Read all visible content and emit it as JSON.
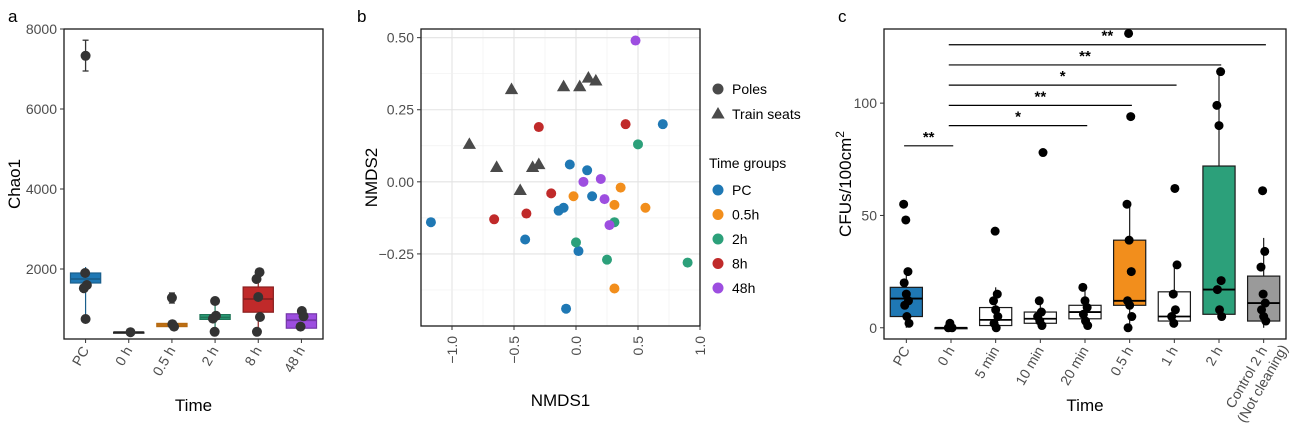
{
  "chart_data": [
    {
      "panel": "a",
      "type": "box",
      "xlabel": "Time",
      "ylabel": "Chao1",
      "ylim": [
        250,
        8000
      ],
      "yticks": [
        2000,
        4000,
        6000,
        8000
      ],
      "grid": false,
      "categories": [
        "PC",
        "0 h",
        "0.5 h",
        "2 h",
        "8 h",
        "48 h"
      ],
      "colors": [
        "#1f78b4",
        "#ffffff",
        "#f28e1c",
        "#2ca07a",
        "#c02a2a",
        "#9d4ee0"
      ],
      "boxes": [
        {
          "min": 750,
          "q1": 1650,
          "median": 1750,
          "q3": 1900,
          "max": 2050
        },
        {
          "min": 420,
          "q1": 420,
          "median": 420,
          "q3": 420,
          "max": 420
        },
        {
          "min": 520,
          "q1": 560,
          "median": 600,
          "q3": 640,
          "max": 680
        },
        {
          "min": 420,
          "q1": 740,
          "median": 790,
          "q3": 860,
          "max": 1150
        },
        {
          "min": 420,
          "q1": 920,
          "median": 1250,
          "q3": 1550,
          "max": 1950
        },
        {
          "min": 500,
          "q1": 520,
          "median": 720,
          "q3": 880,
          "max": 990
        }
      ],
      "points": [
        {
          "cat": 0,
          "y": 7330,
          "err": [
            6950,
            7720
          ]
        },
        {
          "cat": 0,
          "y": 1900
        },
        {
          "cat": 0,
          "y": 1600
        },
        {
          "cat": 0,
          "y": 1520
        },
        {
          "cat": 0,
          "y": 750
        },
        {
          "cat": 1,
          "y": 420
        },
        {
          "cat": 2,
          "y": 1280,
          "err": [
            1150,
            1400
          ]
        },
        {
          "cat": 2,
          "y": 620
        },
        {
          "cat": 2,
          "y": 560
        },
        {
          "cat": 3,
          "y": 1200,
          "err": [
            1120,
            1260
          ]
        },
        {
          "cat": 3,
          "y": 830
        },
        {
          "cat": 3,
          "y": 760
        },
        {
          "cat": 3,
          "y": 430
        },
        {
          "cat": 4,
          "y": 1920
        },
        {
          "cat": 4,
          "y": 1750
        },
        {
          "cat": 4,
          "y": 1300
        },
        {
          "cat": 4,
          "y": 800
        },
        {
          "cat": 4,
          "y": 430
        },
        {
          "cat": 5,
          "y": 950
        },
        {
          "cat": 5,
          "y": 820
        },
        {
          "cat": 5,
          "y": 560
        }
      ]
    },
    {
      "panel": "b",
      "type": "scatter",
      "xlabel": "NMDS1",
      "ylabel": "NMDS2",
      "xlim": [
        -1.25,
        1.0
      ],
      "ylim": [
        -0.5,
        0.53
      ],
      "xticks": [
        -1.0,
        -0.5,
        0.0,
        0.5,
        1.0
      ],
      "xtick_labels": [
        "−1.0",
        "−0.5",
        "0.0",
        "0.5",
        "1.0"
      ],
      "yticks": [
        -0.25,
        0.0,
        0.25,
        0.5
      ],
      "ytick_labels": [
        "−0.25",
        "0.00",
        "0.25",
        "0.50"
      ],
      "grid": true,
      "shape_legend": [
        {
          "shape": "circle",
          "label": "Poles"
        },
        {
          "shape": "triangle",
          "label": "Train seats"
        }
      ],
      "color_legend_title": "Time groups",
      "groups": [
        {
          "name": "PC",
          "color": "#1f78b4"
        },
        {
          "name": "0.5h",
          "color": "#f28e1c"
        },
        {
          "name": "2h",
          "color": "#2ca07a"
        },
        {
          "name": "8h",
          "color": "#c02a2a"
        },
        {
          "name": "48h",
          "color": "#9d4ee0"
        }
      ],
      "seats": [
        [
          -0.52,
          0.32
        ],
        [
          -0.1,
          0.33
        ],
        [
          0.03,
          0.33
        ],
        [
          0.1,
          0.36
        ],
        [
          0.16,
          0.35
        ],
        [
          -0.86,
          0.13
        ],
        [
          -0.64,
          0.05
        ],
        [
          -0.35,
          0.05
        ],
        [
          -0.3,
          0.06
        ],
        [
          -0.45,
          -0.03
        ]
      ],
      "points": [
        {
          "g": 0,
          "x": -1.17,
          "y": -0.14
        },
        {
          "g": 0,
          "x": -0.41,
          "y": -0.2
        },
        {
          "g": 0,
          "x": -0.14,
          "y": -0.1
        },
        {
          "g": 0,
          "x": -0.1,
          "y": -0.09
        },
        {
          "g": 0,
          "x": -0.05,
          "y": 0.06
        },
        {
          "g": 0,
          "x": 0.02,
          "y": -0.24
        },
        {
          "g": 0,
          "x": 0.09,
          "y": 0.04
        },
        {
          "g": 0,
          "x": 0.13,
          "y": -0.05
        },
        {
          "g": 0,
          "x": 0.7,
          "y": 0.2
        },
        {
          "g": 0,
          "x": -0.08,
          "y": -0.44
        },
        {
          "g": 1,
          "x": -0.02,
          "y": -0.05
        },
        {
          "g": 1,
          "x": 0.31,
          "y": -0.08
        },
        {
          "g": 1,
          "x": 0.36,
          "y": -0.02
        },
        {
          "g": 1,
          "x": 0.56,
          "y": -0.09
        },
        {
          "g": 1,
          "x": 0.31,
          "y": -0.37
        },
        {
          "g": 2,
          "x": 0.0,
          "y": -0.21
        },
        {
          "g": 2,
          "x": 0.25,
          "y": -0.27
        },
        {
          "g": 2,
          "x": 0.31,
          "y": -0.14
        },
        {
          "g": 2,
          "x": 0.5,
          "y": 0.13
        },
        {
          "g": 2,
          "x": 0.9,
          "y": -0.28
        },
        {
          "g": 3,
          "x": -0.3,
          "y": 0.19
        },
        {
          "g": 3,
          "x": -0.66,
          "y": -0.13
        },
        {
          "g": 3,
          "x": -0.4,
          "y": -0.11
        },
        {
          "g": 3,
          "x": -0.2,
          "y": -0.04
        },
        {
          "g": 3,
          "x": 0.4,
          "y": 0.2
        },
        {
          "g": 4,
          "x": 0.06,
          "y": 0.0
        },
        {
          "g": 4,
          "x": 0.2,
          "y": 0.01
        },
        {
          "g": 4,
          "x": 0.23,
          "y": -0.06
        },
        {
          "g": 4,
          "x": 0.27,
          "y": -0.15
        },
        {
          "g": 4,
          "x": 0.48,
          "y": 0.49
        }
      ]
    },
    {
      "panel": "c",
      "type": "box",
      "xlabel": "Time",
      "ylabel": "CFUs/100cm",
      "ylabel_sup": "2",
      "ylim": [
        -5,
        133
      ],
      "yticks": [
        0,
        50,
        100
      ],
      "grid": false,
      "categories": [
        "PC",
        "0 h",
        "5 min",
        "10 min",
        "20 min",
        "0.5 h",
        "1 h",
        "2 h",
        "Control 2 h",
        "(Not cleaning)"
      ],
      "category_count": 9,
      "colors": [
        "#1f78b4",
        "#ffffff",
        "#ffffff",
        "#ffffff",
        "#ffffff",
        "#f28e1c",
        "#ffffff",
        "#2ca07a",
        "#9a9a9a"
      ],
      "boxes": [
        {
          "min": 0,
          "q1": 5,
          "median": 13,
          "q3": 18,
          "max": 25
        },
        {
          "min": 0,
          "q1": 0,
          "median": 0,
          "q3": 0,
          "max": 2
        },
        {
          "min": 0,
          "q1": 1,
          "median": 3.5,
          "q3": 9,
          "max": 18
        },
        {
          "min": 0,
          "q1": 2,
          "median": 4,
          "q3": 7,
          "max": 12
        },
        {
          "min": 0,
          "q1": 4,
          "median": 7,
          "q3": 10,
          "max": 18
        },
        {
          "min": 0,
          "q1": 10,
          "median": 12,
          "q3": 39,
          "max": 55
        },
        {
          "min": 0,
          "q1": 3,
          "median": 5,
          "q3": 16,
          "max": 28
        },
        {
          "min": 5,
          "q1": 6,
          "median": 17,
          "q3": 72,
          "max": 114
        },
        {
          "min": 0,
          "q1": 3,
          "median": 11,
          "q3": 23,
          "max": 40
        }
      ],
      "points": [
        {
          "cat": 0,
          "y": 55
        },
        {
          "cat": 0,
          "y": 48
        },
        {
          "cat": 0,
          "y": 25
        },
        {
          "cat": 0,
          "y": 20
        },
        {
          "cat": 0,
          "y": 15
        },
        {
          "cat": 0,
          "y": 12
        },
        {
          "cat": 0,
          "y": 10
        },
        {
          "cat": 0,
          "y": 5
        },
        {
          "cat": 0,
          "y": 2
        },
        {
          "cat": 1,
          "y": 2
        },
        {
          "cat": 1,
          "y": 0
        },
        {
          "cat": 1,
          "y": 0
        },
        {
          "cat": 2,
          "y": 43
        },
        {
          "cat": 2,
          "y": 15
        },
        {
          "cat": 2,
          "y": 12
        },
        {
          "cat": 2,
          "y": 8
        },
        {
          "cat": 2,
          "y": 5
        },
        {
          "cat": 2,
          "y": 2
        },
        {
          "cat": 2,
          "y": 0
        },
        {
          "cat": 3,
          "y": 78
        },
        {
          "cat": 3,
          "y": 12
        },
        {
          "cat": 3,
          "y": 7
        },
        {
          "cat": 3,
          "y": 5
        },
        {
          "cat": 3,
          "y": 3
        },
        {
          "cat": 3,
          "y": 1
        },
        {
          "cat": 4,
          "y": 18
        },
        {
          "cat": 4,
          "y": 12
        },
        {
          "cat": 4,
          "y": 9
        },
        {
          "cat": 4,
          "y": 6
        },
        {
          "cat": 4,
          "y": 3
        },
        {
          "cat": 4,
          "y": 1
        },
        {
          "cat": 5,
          "y": 131
        },
        {
          "cat": 5,
          "y": 94
        },
        {
          "cat": 5,
          "y": 55
        },
        {
          "cat": 5,
          "y": 39
        },
        {
          "cat": 5,
          "y": 25
        },
        {
          "cat": 5,
          "y": 12
        },
        {
          "cat": 5,
          "y": 10
        },
        {
          "cat": 5,
          "y": 5
        },
        {
          "cat": 5,
          "y": 0
        },
        {
          "cat": 6,
          "y": 62
        },
        {
          "cat": 6,
          "y": 28
        },
        {
          "cat": 6,
          "y": 15
        },
        {
          "cat": 6,
          "y": 8
        },
        {
          "cat": 6,
          "y": 5
        },
        {
          "cat": 6,
          "y": 2
        },
        {
          "cat": 7,
          "y": 114
        },
        {
          "cat": 7,
          "y": 99
        },
        {
          "cat": 7,
          "y": 90
        },
        {
          "cat": 7,
          "y": 21
        },
        {
          "cat": 7,
          "y": 17
        },
        {
          "cat": 7,
          "y": 8
        },
        {
          "cat": 7,
          "y": 5
        },
        {
          "cat": 8,
          "y": 61
        },
        {
          "cat": 8,
          "y": 34
        },
        {
          "cat": 8,
          "y": 27
        },
        {
          "cat": 8,
          "y": 15
        },
        {
          "cat": 8,
          "y": 11
        },
        {
          "cat": 8,
          "y": 8
        },
        {
          "cat": 8,
          "y": 5
        },
        {
          "cat": 8,
          "y": 3
        }
      ],
      "comparisons": [
        {
          "from": 0,
          "to": 1,
          "y": 81,
          "label": "**"
        },
        {
          "from": 1,
          "to": 4,
          "y": 90,
          "label": "*"
        },
        {
          "from": 1,
          "to": 5,
          "y": 99,
          "label": "**"
        },
        {
          "from": 1,
          "to": 6,
          "y": 108,
          "label": "*"
        },
        {
          "from": 1,
          "to": 7,
          "y": 117,
          "label": "**"
        },
        {
          "from": 1,
          "to": 8,
          "y": 126,
          "label": "**"
        }
      ]
    }
  ]
}
